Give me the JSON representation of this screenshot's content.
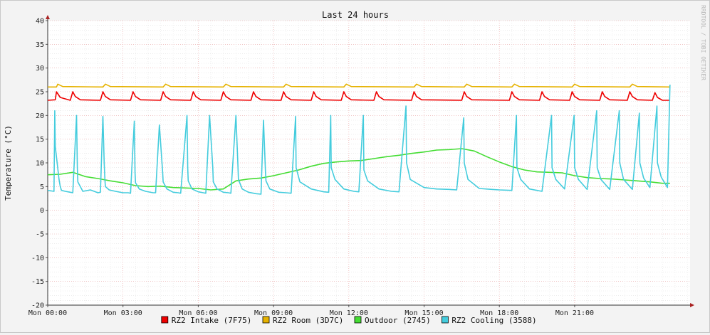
{
  "chart_data": {
    "type": "line",
    "title": "Last 24 hours",
    "ylabel": "Temperature (°C)",
    "watermark": "RRDTOOL / TOBI OETIKER",
    "ylim": [
      -20,
      40
    ],
    "y_ticks": [
      40,
      35,
      30,
      25,
      20,
      15,
      10,
      5,
      0,
      -5,
      -10,
      -15,
      -20
    ],
    "xlim_hours": [
      0,
      25.6
    ],
    "x_ticks": [
      {
        "hour": 0,
        "label": "Mon 00:00"
      },
      {
        "hour": 3,
        "label": "Mon 03:00"
      },
      {
        "hour": 6,
        "label": "Mon 06:00"
      },
      {
        "hour": 9,
        "label": "Mon 09:00"
      },
      {
        "hour": 12,
        "label": "Mon 12:00"
      },
      {
        "hour": 15,
        "label": "Mon 15:00"
      },
      {
        "hour": 18,
        "label": "Mon 18:00"
      },
      {
        "hour": 21,
        "label": "Mon 21:00"
      }
    ],
    "grid": true,
    "legend_position": "bottom",
    "series": [
      {
        "name": "RZ2 Intake (7F75)",
        "color": "#ee0000",
        "x": [
          0,
          0.3,
          0.35,
          0.5,
          0.9,
          1.0,
          1.1,
          1.3,
          2.1,
          2.2,
          2.3,
          2.5,
          3.3,
          3.4,
          3.5,
          3.7,
          4.5,
          4.6,
          4.7,
          4.9,
          5.7,
          5.8,
          5.9,
          6.1,
          6.9,
          7.0,
          7.1,
          7.3,
          8.1,
          8.2,
          8.3,
          8.5,
          9.3,
          9.4,
          9.5,
          9.7,
          10.5,
          10.6,
          10.7,
          10.9,
          11.7,
          11.8,
          11.9,
          12.1,
          13.0,
          13.1,
          13.2,
          13.4,
          14.5,
          14.6,
          14.7,
          14.9,
          16.5,
          16.6,
          16.7,
          16.9,
          18.4,
          18.5,
          18.6,
          18.8,
          19.6,
          19.7,
          19.8,
          20.0,
          20.8,
          20.9,
          21.0,
          21.2,
          22.0,
          22.1,
          22.2,
          22.4,
          23.1,
          23.2,
          23.3,
          23.5,
          24.1,
          24.2,
          24.3,
          24.5,
          24.8
        ],
        "values": [
          23.2,
          23.3,
          25,
          23.8,
          23.2,
          25.0,
          24.0,
          23.3,
          23.2,
          25.0,
          24.0,
          23.3,
          23.2,
          25.0,
          24.0,
          23.3,
          23.2,
          25.0,
          24.0,
          23.3,
          23.2,
          25.0,
          24.0,
          23.3,
          23.2,
          25.0,
          24.0,
          23.3,
          23.2,
          25.0,
          24.0,
          23.3,
          23.2,
          25.0,
          24.0,
          23.3,
          23.2,
          25.0,
          24.0,
          23.3,
          23.2,
          25.0,
          24.0,
          23.3,
          23.2,
          25.0,
          24.0,
          23.3,
          23.2,
          25.0,
          24.0,
          23.3,
          23.2,
          25.0,
          24.0,
          23.3,
          23.2,
          25.0,
          24.0,
          23.3,
          23.2,
          25.0,
          24.0,
          23.3,
          23.2,
          25.0,
          24.0,
          23.3,
          23.2,
          25.0,
          24.0,
          23.3,
          23.2,
          25.0,
          24.0,
          23.3,
          23.2,
          24.8,
          23.8,
          23.2,
          23.2
        ]
      },
      {
        "name": "RZ2 Room (3D7C)",
        "color": "#e6b200",
        "x": [
          0,
          0.35,
          0.4,
          0.6,
          2.2,
          2.3,
          2.5,
          4.6,
          4.7,
          4.9,
          7.0,
          7.1,
          7.3,
          9.4,
          9.5,
          9.7,
          11.8,
          11.9,
          12.1,
          14.6,
          14.7,
          14.9,
          16.6,
          16.7,
          16.9,
          18.5,
          18.6,
          18.8,
          20.9,
          21.0,
          21.2,
          23.2,
          23.3,
          23.5,
          24.8
        ],
        "values": [
          26.0,
          26.0,
          26.6,
          26.1,
          26.0,
          26.6,
          26.1,
          26.0,
          26.6,
          26.1,
          26.0,
          26.6,
          26.1,
          26.0,
          26.6,
          26.1,
          26.0,
          26.6,
          26.1,
          26.0,
          26.6,
          26.1,
          26.0,
          26.6,
          26.1,
          26.0,
          26.6,
          26.1,
          26.0,
          26.6,
          26.1,
          26.0,
          26.6,
          26.1,
          26.0
        ]
      },
      {
        "name": "Outdoor (2745)",
        "color": "#44dd33",
        "x": [
          0,
          0.5,
          1.0,
          1.5,
          2.0,
          2.5,
          3.0,
          3.5,
          4.0,
          4.5,
          5.0,
          5.5,
          6.0,
          6.5,
          7.0,
          7.5,
          8.0,
          8.5,
          9.0,
          9.5,
          10.0,
          10.5,
          11.0,
          11.5,
          12.0,
          12.5,
          13.0,
          13.5,
          14.0,
          14.5,
          15.0,
          15.5,
          16.0,
          16.5,
          17.0,
          17.5,
          18.0,
          18.5,
          19.0,
          19.5,
          20.0,
          20.5,
          21.0,
          21.5,
          22.0,
          22.5,
          23.0,
          23.5,
          24.0,
          24.5,
          24.8
        ],
        "values": [
          7.5,
          7.6,
          8.0,
          7.1,
          6.7,
          6.2,
          5.8,
          5.2,
          5.0,
          5.1,
          4.8,
          4.7,
          4.6,
          4.3,
          4.5,
          6.2,
          6.6,
          6.8,
          7.3,
          7.9,
          8.5,
          9.3,
          9.9,
          10.2,
          10.4,
          10.5,
          10.9,
          11.3,
          11.6,
          12.0,
          12.3,
          12.7,
          12.8,
          13.0,
          12.5,
          11.3,
          10.2,
          9.2,
          8.5,
          8.1,
          8.0,
          7.9,
          7.3,
          6.9,
          6.7,
          6.6,
          6.4,
          6.2,
          6.0,
          5.7,
          5.7
        ]
      },
      {
        "name": "RZ2 Cooling (3588)",
        "color": "#44ccdd",
        "x": [
          0,
          0.25,
          0.28,
          0.3,
          0.45,
          0.5,
          0.55,
          0.7,
          0.9,
          1.0,
          1.15,
          1.18,
          1.2,
          1.35,
          1.4,
          1.7,
          2.0,
          2.1,
          2.2,
          2.25,
          2.28,
          2.3,
          2.45,
          2.7,
          3.0,
          3.2,
          3.3,
          3.45,
          3.48,
          3.5,
          3.65,
          3.9,
          4.2,
          4.3,
          4.45,
          4.58,
          4.6,
          4.75,
          5.0,
          5.2,
          5.3,
          5.55,
          5.58,
          5.6,
          5.75,
          6.0,
          6.2,
          6.3,
          6.45,
          6.58,
          6.6,
          6.75,
          7.0,
          7.2,
          7.3,
          7.5,
          7.58,
          7.6,
          7.75,
          8.0,
          8.3,
          8.5,
          8.6,
          8.68,
          8.7,
          8.85,
          9.2,
          9.5,
          9.7,
          9.88,
          9.9,
          10.05,
          10.5,
          11.0,
          11.2,
          11.28,
          11.3,
          11.45,
          11.8,
          12.2,
          12.4,
          12.58,
          12.6,
          12.75,
          13.2,
          13.7,
          14.0,
          14.28,
          14.3,
          14.45,
          15.0,
          15.5,
          16.0,
          16.3,
          16.58,
          16.6,
          16.75,
          17.2,
          17.7,
          18.0,
          18.5,
          18.68,
          18.7,
          18.85,
          19.2,
          19.7,
          20.08,
          20.1,
          20.25,
          20.6,
          20.98,
          21.0,
          21.15,
          21.5,
          21.88,
          21.9,
          22.05,
          22.4,
          22.78,
          22.8,
          22.95,
          23.3,
          23.58,
          23.6,
          23.75,
          24.0,
          24.28,
          24.3,
          24.45,
          24.7,
          24.8
        ],
        "values": [
          4.2,
          4.0,
          21.0,
          13.5,
          6.5,
          5.0,
          4.2,
          4.0,
          3.8,
          3.7,
          20.0,
          9.0,
          6.0,
          4.5,
          4.0,
          4.3,
          3.7,
          3.8,
          19.8,
          10.0,
          6.5,
          5.0,
          4.3,
          4.0,
          3.7,
          3.7,
          3.6,
          18.8,
          8.0,
          5.8,
          4.5,
          4.0,
          3.7,
          3.7,
          18.0,
          8.0,
          6.0,
          4.5,
          3.8,
          3.7,
          3.6,
          20.0,
          9.0,
          6.2,
          4.5,
          3.9,
          3.7,
          3.6,
          20.0,
          9.0,
          6.0,
          4.5,
          3.8,
          3.7,
          3.6,
          20.0,
          9.5,
          6.5,
          4.5,
          3.8,
          3.5,
          3.4,
          19.0,
          8.0,
          6.2,
          4.5,
          3.8,
          3.7,
          3.6,
          19.8,
          9.0,
          6.0,
          4.5,
          3.9,
          3.8,
          20.0,
          9.0,
          6.5,
          4.5,
          4.0,
          3.9,
          20.0,
          8.5,
          6.2,
          4.5,
          4.0,
          3.9,
          22.0,
          10.0,
          6.5,
          4.8,
          4.5,
          4.4,
          4.3,
          19.5,
          10.0,
          6.5,
          4.6,
          4.4,
          4.3,
          4.2,
          20.0,
          9.0,
          6.5,
          4.5,
          4.0,
          20.0,
          9.0,
          6.5,
          4.5,
          20.0,
          9.0,
          6.5,
          4.4,
          21.0,
          9.0,
          6.5,
          4.4,
          21.0,
          10.0,
          6.5,
          4.4,
          20.5,
          10.0,
          6.8,
          4.8,
          22.0,
          10.0,
          7.0,
          4.8,
          26.5
        ]
      }
    ]
  }
}
